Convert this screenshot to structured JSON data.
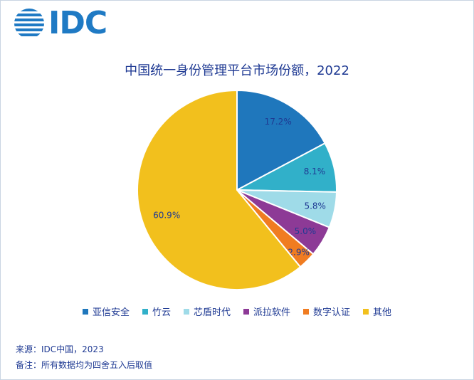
{
  "logo": {
    "text": "IDC"
  },
  "chart_data": {
    "type": "pie",
    "title": "中国统一身份管理平台市场份额，2022",
    "series": [
      {
        "name": "亚信安全",
        "value": 17.2,
        "label": "17.2%",
        "color": "#1f77bc"
      },
      {
        "name": "竹云",
        "value": 8.1,
        "label": "8.1%",
        "color": "#31b0c9"
      },
      {
        "name": "芯盾时代",
        "value": 5.8,
        "label": "5.8%",
        "color": "#9fdbe8"
      },
      {
        "name": "派拉软件",
        "value": 5.0,
        "label": "5.0%",
        "color": "#8d3a96"
      },
      {
        "name": "数字认证",
        "value": 2.9,
        "label": "2.9%",
        "color": "#f07c21"
      },
      {
        "name": "其他",
        "value": 60.9,
        "label": "60.9%",
        "color": "#f2c01d"
      }
    ],
    "legend_position": "bottom"
  },
  "footer": {
    "source": "来源：IDC中国，2023",
    "note": "备注：所有数据均为四舍五入后取值"
  }
}
